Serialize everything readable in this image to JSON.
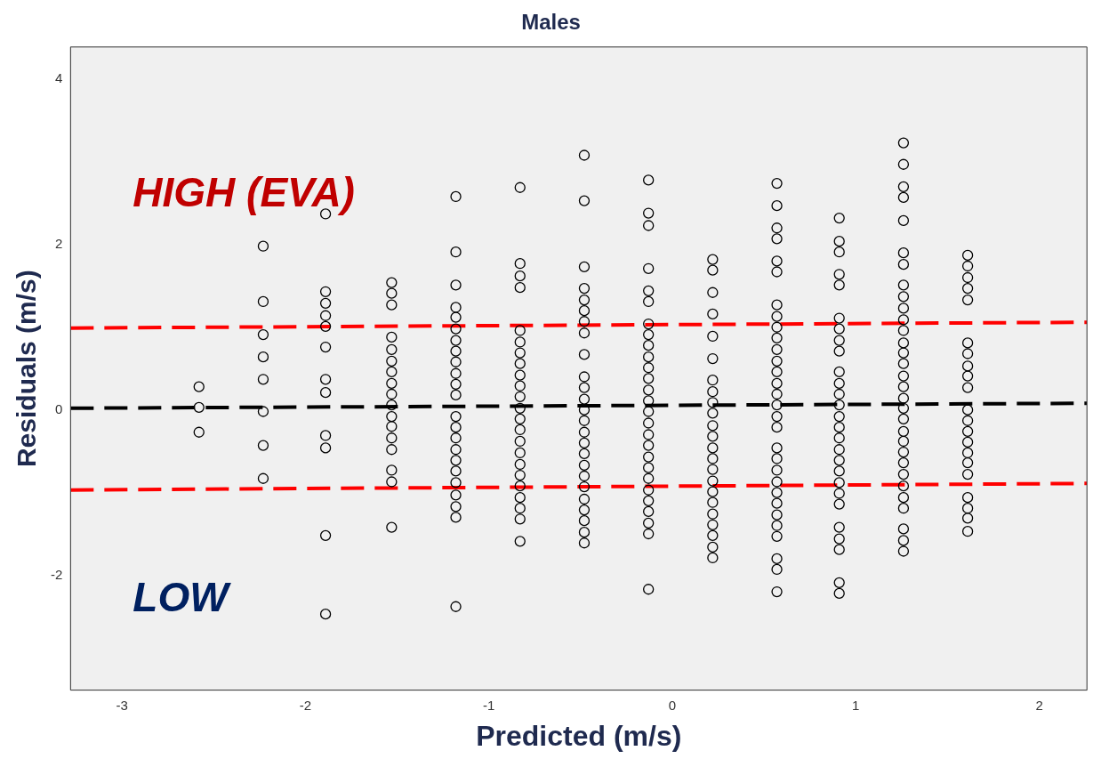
{
  "chart_data": {
    "type": "scatter",
    "title": "Males",
    "xlabel": "Predicted (m/s)",
    "ylabel": "Residuals (m/s)",
    "xlim": [
      -3.28,
      2.26
    ],
    "ylim": [
      -3.39,
      4.39
    ],
    "xticks": [
      -3,
      -2,
      -1,
      0,
      1,
      2
    ],
    "yticks": [
      -2,
      0,
      2,
      4
    ],
    "grid": false,
    "legend": false,
    "line_style": "dashed",
    "annotations": [
      "HIGH (EVA)",
      "LOW"
    ],
    "series": [
      {
        "type": "scatter",
        "marker": "circle",
        "color": "#000000",
        "x": [
          -2.58,
          -2.58,
          -2.58,
          -2.23,
          -2.23,
          -2.23,
          -2.23,
          -2.23,
          -2.23,
          -2.23,
          -2.23,
          -1.89,
          -1.89,
          -1.89,
          -1.89,
          -1.89,
          -1.89,
          -1.89,
          -1.89,
          -1.89,
          -1.89,
          -1.89,
          -1.89,
          -1.53,
          -1.53,
          -1.53,
          -1.53,
          -1.53,
          -1.53,
          -1.53,
          -1.53,
          -1.53,
          -1.53,
          -1.53,
          -1.53,
          -1.53,
          -1.53,
          -1.53,
          -1.53,
          -1.53,
          -1.18,
          -1.18,
          -1.18,
          -1.18,
          -1.18,
          -1.18,
          -1.18,
          -1.18,
          -1.18,
          -1.18,
          -1.18,
          -1.18,
          -1.18,
          -1.18,
          -1.18,
          -1.18,
          -1.18,
          -1.18,
          -1.18,
          -1.18,
          -1.18,
          -1.18,
          -1.18,
          -0.83,
          -0.83,
          -0.83,
          -0.83,
          -0.83,
          -0.83,
          -0.83,
          -0.83,
          -0.83,
          -0.83,
          -0.83,
          -0.83,
          -0.83,
          -0.83,
          -0.83,
          -0.83,
          -0.83,
          -0.83,
          -0.83,
          -0.83,
          -0.83,
          -0.83,
          -0.83,
          -0.48,
          -0.48,
          -0.48,
          -0.48,
          -0.48,
          -0.48,
          -0.48,
          -0.48,
          -0.48,
          -0.48,
          -0.48,
          -0.48,
          -0.48,
          -0.48,
          -0.48,
          -0.48,
          -0.48,
          -0.48,
          -0.48,
          -0.48,
          -0.48,
          -0.48,
          -0.48,
          -0.48,
          -0.48,
          -0.13,
          -0.13,
          -0.13,
          -0.13,
          -0.13,
          -0.13,
          -0.13,
          -0.13,
          -0.13,
          -0.13,
          -0.13,
          -0.13,
          -0.13,
          -0.13,
          -0.13,
          -0.13,
          -0.13,
          -0.13,
          -0.13,
          -0.13,
          -0.13,
          -0.13,
          -0.13,
          -0.13,
          -0.13,
          -0.13,
          -0.13,
          0.22,
          0.22,
          0.22,
          0.22,
          0.22,
          0.22,
          0.22,
          0.22,
          0.22,
          0.22,
          0.22,
          0.22,
          0.22,
          0.22,
          0.22,
          0.22,
          0.22,
          0.22,
          0.22,
          0.22,
          0.22,
          0.22,
          0.22,
          0.57,
          0.57,
          0.57,
          0.57,
          0.57,
          0.57,
          0.57,
          0.57,
          0.57,
          0.57,
          0.57,
          0.57,
          0.57,
          0.57,
          0.57,
          0.57,
          0.57,
          0.57,
          0.57,
          0.57,
          0.57,
          0.57,
          0.57,
          0.57,
          0.57,
          0.57,
          0.57,
          0.57,
          0.57,
          0.57,
          0.91,
          0.91,
          0.91,
          0.91,
          0.91,
          0.91,
          0.91,
          0.91,
          0.91,
          0.91,
          0.91,
          0.91,
          0.91,
          0.91,
          0.91,
          0.91,
          0.91,
          0.91,
          0.91,
          0.91,
          0.91,
          0.91,
          0.91,
          0.91,
          0.91,
          0.91,
          0.91,
          1.26,
          1.26,
          1.26,
          1.26,
          1.26,
          1.26,
          1.26,
          1.26,
          1.26,
          1.26,
          1.26,
          1.26,
          1.26,
          1.26,
          1.26,
          1.26,
          1.26,
          1.26,
          1.26,
          1.26,
          1.26,
          1.26,
          1.26,
          1.26,
          1.26,
          1.26,
          1.26,
          1.26,
          1.26,
          1.26,
          1.26,
          1.61,
          1.61,
          1.61,
          1.61,
          1.61,
          1.61,
          1.61,
          1.61,
          1.61,
          1.61,
          1.61,
          1.61,
          1.61,
          1.61,
          1.61,
          1.61,
          1.61,
          1.61,
          1.61,
          1.61,
          1.61
        ],
        "values": [
          0.28,
          0.03,
          -0.27,
          1.98,
          1.31,
          0.91,
          0.64,
          0.37,
          -0.02,
          -0.43,
          -0.83,
          2.37,
          1.43,
          1.29,
          1.14,
          1.01,
          0.76,
          0.37,
          0.21,
          -0.31,
          -0.46,
          -1.52,
          -2.47,
          1.54,
          1.41,
          1.27,
          0.88,
          0.73,
          0.59,
          0.46,
          0.32,
          0.19,
          0.06,
          -0.08,
          -0.2,
          -0.34,
          -0.48,
          -0.73,
          -0.87,
          -1.42,
          2.58,
          1.91,
          1.51,
          1.24,
          1.12,
          0.98,
          0.84,
          0.71,
          0.58,
          0.44,
          0.31,
          0.18,
          -0.08,
          -0.21,
          -0.34,
          -0.48,
          -0.61,
          -0.74,
          -0.88,
          -1.03,
          -1.17,
          -1.3,
          -2.38,
          2.69,
          1.77,
          1.62,
          1.48,
          0.96,
          0.82,
          0.69,
          0.56,
          0.42,
          0.29,
          0.16,
          0.02,
          -0.11,
          -0.24,
          -0.38,
          -0.52,
          -0.66,
          -0.79,
          -0.92,
          -1.06,
          -1.19,
          -1.32,
          -1.59,
          3.08,
          2.53,
          1.73,
          1.47,
          1.33,
          1.2,
          1.07,
          0.93,
          0.67,
          0.4,
          0.27,
          0.13,
          0,
          -0.13,
          -0.27,
          -0.4,
          -0.53,
          -0.67,
          -0.8,
          -0.93,
          -1.08,
          -1.21,
          -1.34,
          -1.48,
          -1.61,
          2.78,
          2.38,
          2.23,
          1.71,
          1.44,
          1.31,
          1.04,
          0.91,
          0.78,
          0.64,
          0.51,
          0.38,
          0.24,
          0.11,
          -0.02,
          -0.16,
          -0.3,
          -0.43,
          -0.57,
          -0.7,
          -0.83,
          -0.97,
          -1.1,
          -1.23,
          -1.37,
          -1.5,
          -2.17,
          1.82,
          1.69,
          1.42,
          1.16,
          0.89,
          0.62,
          0.36,
          0.22,
          0.09,
          -0.04,
          -0.19,
          -0.32,
          -0.46,
          -0.59,
          -0.72,
          -0.86,
          -0.99,
          -1.12,
          -1.26,
          -1.39,
          -1.52,
          -1.66,
          -1.79,
          2.74,
          2.47,
          2.2,
          2.07,
          1.8,
          1.67,
          1.27,
          1.13,
          1,
          0.87,
          0.73,
          0.59,
          0.46,
          0.32,
          0.19,
          0.06,
          -0.08,
          -0.21,
          -0.46,
          -0.59,
          -0.73,
          -0.87,
          -1,
          -1.13,
          -1.27,
          -1.4,
          -1.53,
          -1.8,
          -1.93,
          -2.2,
          2.32,
          2.04,
          1.91,
          1.64,
          1.51,
          1.11,
          0.98,
          0.84,
          0.71,
          0.46,
          0.32,
          0.19,
          0.06,
          -0.08,
          -0.21,
          -0.34,
          -0.48,
          -0.61,
          -0.74,
          -0.88,
          -1.01,
          -1.14,
          -1.42,
          -1.56,
          -1.69,
          -2.09,
          -2.22,
          3.23,
          2.97,
          2.7,
          2.57,
          2.29,
          1.9,
          1.76,
          1.51,
          1.37,
          1.23,
          1.09,
          0.96,
          0.81,
          0.69,
          0.56,
          0.41,
          0.28,
          0.14,
          0.02,
          -0.11,
          -0.26,
          -0.38,
          -0.51,
          -0.64,
          -0.78,
          -0.92,
          -1.06,
          -1.19,
          -1.44,
          -1.58,
          -1.71,
          1.87,
          1.74,
          1.6,
          1.47,
          1.33,
          0.81,
          0.68,
          0.53,
          0.41,
          0.27,
          0,
          -0.13,
          -0.26,
          -0.39,
          -0.52,
          -0.64,
          -0.78,
          -1.06,
          -1.19,
          -1.31,
          -1.47
        ]
      },
      {
        "type": "line",
        "marker": "none",
        "color": "#ff0000",
        "x": [
          -3.28,
          2.26
        ],
        "values": [
          0.99,
          1.06
        ]
      },
      {
        "type": "line",
        "marker": "none",
        "color": "#000000",
        "x": [
          -3.28,
          2.26
        ],
        "values": [
          0.02,
          0.08
        ]
      },
      {
        "type": "line",
        "marker": "none",
        "color": "#ff0000",
        "x": [
          -3.28,
          2.26
        ],
        "values": [
          -0.97,
          -0.89
        ]
      }
    ]
  }
}
